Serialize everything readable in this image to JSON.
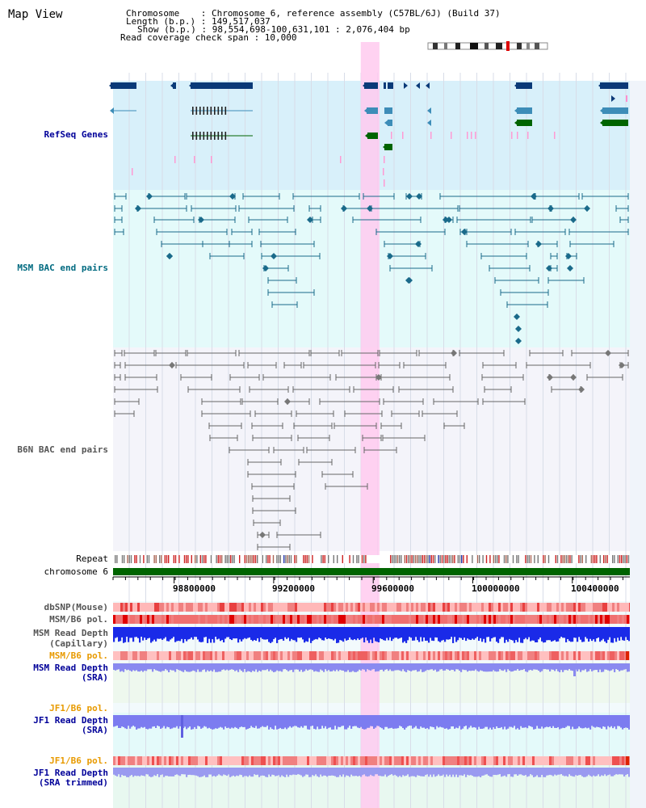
{
  "page": {
    "title": "Map View"
  },
  "info": {
    "chromosome_line": "Chromosome    : Chromosome 6, reference assembly (C57BL/6J) (Build 37)",
    "length_line": "Length (b.p.) : 149,517,037",
    "show_line": "Show (b.p.) : 98,554,698-100,631,101 : 2,076,404 bp",
    "coverage_line": "Read coverage check span : 10,000"
  },
  "tracks": {
    "refseq": "RefSeq Genes",
    "msm_bac": "MSM BAC end pairs",
    "b6n_bac": "B6N BAC end pairs",
    "repeat": "Repeat",
    "chromosome": "chromosome 6",
    "dbsnp": "dbSNP(Mouse)",
    "msm_b6_pol_1": "MSM/B6 pol.",
    "msm_read_depth_cap_1": "MSM Read Depth",
    "msm_read_depth_cap_2": "(Capillary)",
    "msm_b6_pol_2": "MSM/B6 pol.",
    "msm_read_depth_sra_1": "MSM Read Depth",
    "msm_read_depth_sra_2": "(SRA)",
    "jf1_b6_pol_1": "JF1/B6 pol.",
    "jf1_read_depth_sra_1": "JF1 Read Depth",
    "jf1_read_depth_sra_2": "(SRA)",
    "jf1_b6_pol_2": "JF1/B6 pol.",
    "jf1_read_depth_trim_1": "JF1 Read Depth",
    "jf1_read_depth_trim_2": "(SRA trimmed)"
  },
  "axis": {
    "start": 98554698,
    "end": 100631101,
    "ticks": [
      "98800000",
      "99200000",
      "99600000",
      "100000000",
      "100400000"
    ],
    "tick_values": [
      98800000,
      99200000,
      99600000,
      100000000,
      100400000
    ]
  },
  "highlight": {
    "start": 99550000,
    "end": 99625000,
    "color": "#ffcaee"
  },
  "colors": {
    "refseq_bg": "#d8f0fa",
    "msm_bg": "#e4fafa",
    "b6n_bg": "#f4f4fa",
    "gene_dark": "#0a3a78",
    "gene_mid": "#3d8db8",
    "gene_green": "#006400",
    "msm_line": "#1a6a8a",
    "b6n_line": "#666666",
    "chrom": "#006400",
    "label_blue": "#000099",
    "label_teal": "#006a80",
    "label_orange": "#e89a00",
    "label_gray": "#555555"
  }
}
